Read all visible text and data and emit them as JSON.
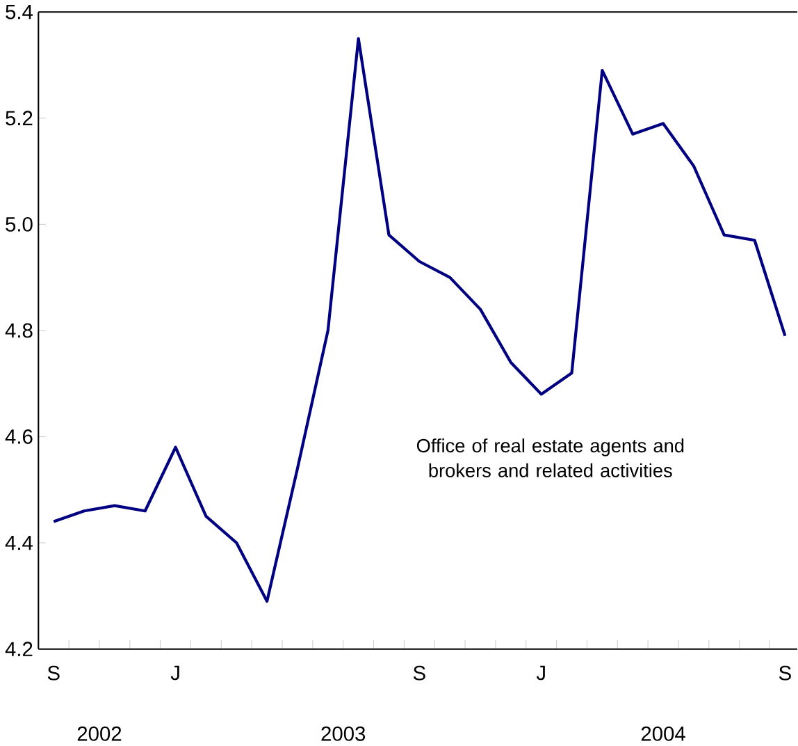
{
  "chart_data": {
    "type": "line",
    "categories": [
      "S",
      null,
      null,
      null,
      "J",
      null,
      null,
      null,
      null,
      null,
      null,
      null,
      "S",
      null,
      null,
      null,
      "J",
      null,
      null,
      null,
      null,
      null,
      null,
      null,
      "S"
    ],
    "series": [
      {
        "name": "Office of real estate agents and brokers and related activities",
        "color": "#000080",
        "values": [
          4.44,
          4.46,
          4.47,
          4.46,
          4.58,
          4.45,
          4.4,
          4.29,
          4.54,
          4.8,
          5.35,
          4.98,
          4.93,
          4.9,
          4.84,
          4.74,
          4.68,
          4.72,
          5.29,
          5.17,
          5.19,
          5.11,
          4.98,
          4.97,
          4.79
        ]
      }
    ],
    "ylim": [
      4.2,
      5.4
    ],
    "yticks": [
      4.2,
      4.4,
      4.6,
      4.8,
      {
        "value": 5.0,
        "label": "5.0"
      },
      5.2,
      5.4
    ],
    "annotations": [
      "2002",
      "2003",
      "2004"
    ],
    "grid": false,
    "marker": "none",
    "line_style": "solid"
  }
}
